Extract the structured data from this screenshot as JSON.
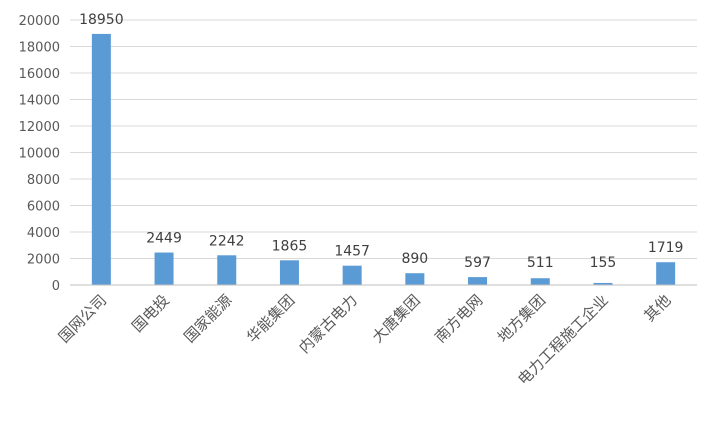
{
  "chart_data": {
    "type": "bar",
    "categories": [
      "国网公司",
      "国电投",
      "国家能源",
      "华能集团",
      "内蒙古电力",
      "大唐集团",
      "南方电网",
      "地方集团",
      "电力工程施工企业",
      "其他"
    ],
    "values": [
      18950,
      2449,
      2242,
      1865,
      1457,
      890,
      597,
      511,
      155,
      1719
    ],
    "data_labels": [
      "18950",
      "2449",
      "2242",
      "1865",
      "1457",
      "890",
      "597",
      "511",
      "155",
      "1719"
    ],
    "ylim": [
      0,
      20000
    ],
    "yticks": [
      "0",
      "2000",
      "4000",
      "6000",
      "8000",
      "10000",
      "12000",
      "14000",
      "16000",
      "18000",
      "20000"
    ],
    "grid": true,
    "legend": "none",
    "bar_color": "#5B9BD5",
    "grid_color": "#D9D9D9",
    "title": "",
    "xlabel": "",
    "ylabel": ""
  }
}
